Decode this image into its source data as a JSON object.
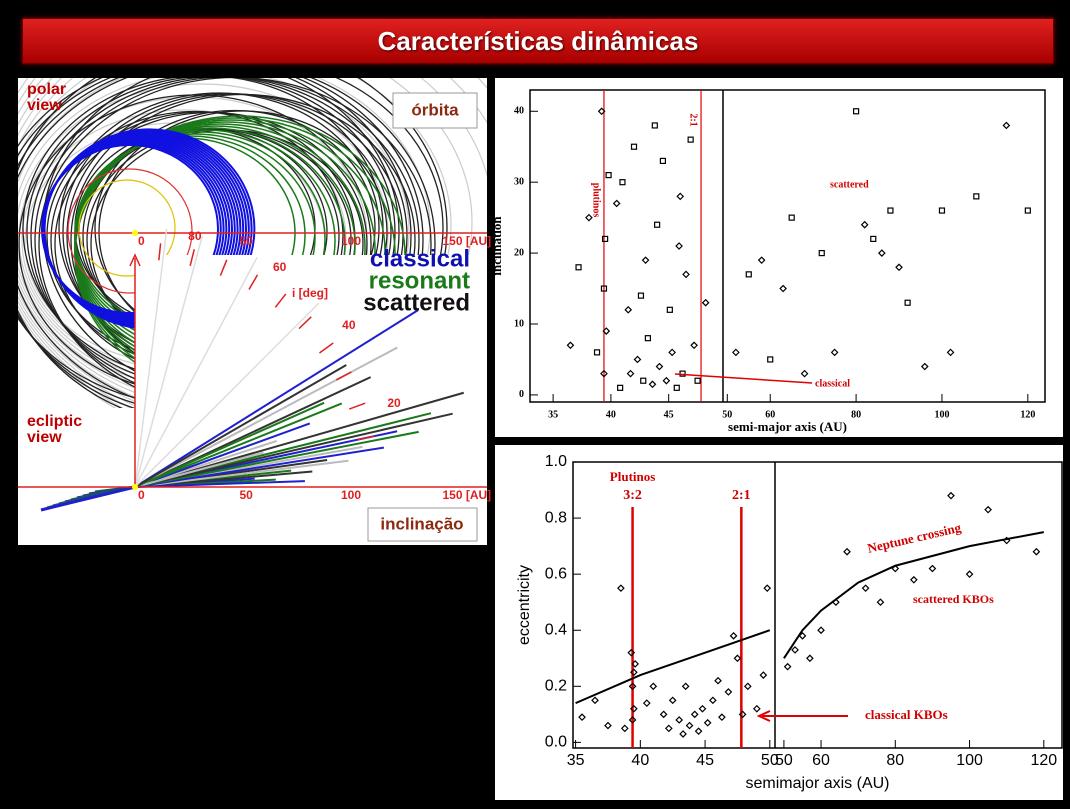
{
  "title": "Características dinâmicas",
  "orbit_panel": {
    "polar_label": "polar view",
    "orbit_tag": "órbita",
    "legend": [
      "classical",
      "resonant",
      "scattered"
    ],
    "polar_ticks": [
      "0",
      "50",
      "100",
      "150 [AU]"
    ],
    "incl_ticks": [
      "80",
      "60",
      "40",
      "20"
    ],
    "incl_unit": "i [deg]",
    "ecliptic_label": "ecliptic view",
    "ecliptic_ticks": [
      "0",
      "50",
      "100",
      "150 [AU]"
    ],
    "incl_tag": "inclinação"
  },
  "chart_data": [
    {
      "type": "scatter",
      "xlabel": "semi-major axis (AU)",
      "ylabel": "inclination",
      "ylim": [
        -1,
        43
      ],
      "yticks": [
        0,
        10,
        20,
        30,
        40
      ],
      "panels": [
        {
          "xlim": [
            33,
            49.7
          ],
          "xticks": [
            35,
            40,
            45
          ]
        },
        {
          "xlim": [
            49,
            124
          ],
          "xticks": [
            50,
            60,
            80,
            100,
            120
          ]
        }
      ],
      "points": {
        "x": [
          36.5,
          37.2,
          38.1,
          38.8,
          39.2,
          39.4,
          39.4,
          39.5,
          39.6,
          39.8,
          40.5,
          41,
          41.5,
          42,
          42.3,
          42.8,
          43,
          43.2,
          43.6,
          44,
          44.2,
          44.5,
          44.8,
          45.1,
          45.3,
          45.7,
          46,
          46.2,
          46.5,
          46.9,
          47.2,
          47.5,
          48.2,
          40.8,
          41.7,
          43.8,
          45.9,
          42.6,
          52,
          55,
          58,
          60,
          63,
          65,
          68,
          72,
          75,
          80,
          82,
          84,
          86,
          88,
          90,
          92,
          96,
          100,
          102,
          108,
          115,
          120
        ],
        "values": [
          7,
          18,
          25,
          6,
          40,
          15,
          3,
          22,
          9,
          31,
          27,
          30,
          12,
          35,
          5,
          2,
          19,
          8,
          1.5,
          24,
          4,
          33,
          2,
          12,
          6,
          1,
          28,
          3,
          17,
          36,
          7,
          2,
          13,
          1,
          3,
          38,
          21,
          14,
          6,
          17,
          19,
          5,
          15,
          25,
          3,
          20,
          6,
          40,
          24,
          22,
          20,
          26,
          18,
          13,
          4,
          26,
          6,
          28,
          38,
          26
        ]
      },
      "resonances": [
        {
          "label": "plutinos",
          "a": 39.4
        },
        {
          "label": "2:1",
          "a": 47.8
        }
      ],
      "annotations": [
        "scattered",
        "classical"
      ]
    },
    {
      "type": "scatter",
      "xlabel": "semimajor axis (AU)",
      "ylabel": "eccentricity",
      "ylim": [
        -0.02,
        1.0
      ],
      "yticks": [
        {
          "value": 0,
          "label": "0.0"
        },
        0.2,
        0.4,
        0.6,
        0.8,
        {
          "value": 1,
          "label": "1.0"
        }
      ],
      "panels": [
        {
          "xlim": [
            34.8,
            50.4
          ],
          "xticks": [
            35,
            40,
            45,
            50
          ]
        },
        {
          "xlim": [
            47.6,
            124.9
          ],
          "xticks": [
            50,
            60,
            80,
            100,
            120
          ]
        }
      ],
      "points": {
        "x": [
          35.5,
          36.5,
          37.5,
          38.5,
          38.8,
          39.3,
          39.4,
          39.5,
          39.5,
          39.6,
          39.4,
          40.5,
          41,
          41.8,
          42.2,
          42.5,
          43,
          43.3,
          43.5,
          43.8,
          44.2,
          44.5,
          44.8,
          45.2,
          45.6,
          46,
          46.3,
          46.8,
          47.2,
          47.5,
          47.9,
          48.3,
          49,
          49.5,
          49.8,
          51,
          53,
          55,
          57,
          60,
          64,
          67,
          72,
          76,
          80,
          85,
          90,
          95,
          100,
          105,
          110,
          118
        ],
        "values": [
          0.09,
          0.15,
          0.06,
          0.55,
          0.05,
          0.32,
          0.2,
          0.25,
          0.12,
          0.28,
          0.08,
          0.14,
          0.2,
          0.1,
          0.05,
          0.15,
          0.08,
          0.03,
          0.2,
          0.06,
          0.1,
          0.04,
          0.12,
          0.07,
          0.15,
          0.22,
          0.09,
          0.18,
          0.38,
          0.3,
          0.1,
          0.2,
          0.12,
          0.24,
          0.55,
          0.27,
          0.33,
          0.38,
          0.3,
          0.4,
          0.5,
          0.68,
          0.55,
          0.5,
          0.62,
          0.58,
          0.62,
          0.88,
          0.6,
          0.83,
          0.72,
          0.68
        ]
      },
      "curve": {
        "name": "Neptune crossing",
        "x": [
          35,
          40,
          45,
          50,
          50,
          50,
          55,
          60,
          70,
          80,
          100,
          120
        ],
        "values": [
          0.14,
          0.24,
          0.32,
          0.4,
          null,
          0.3,
          0.4,
          0.47,
          0.57,
          0.63,
          0.7,
          0.75
        ]
      },
      "resonances": [
        {
          "name": "Plutinos",
          "label": "3:2",
          "a": 39.4
        },
        {
          "label": "2:1",
          "a": 47.8
        }
      ],
      "annotations": [
        "scattered KBOs",
        "classical KBOs"
      ]
    }
  ]
}
